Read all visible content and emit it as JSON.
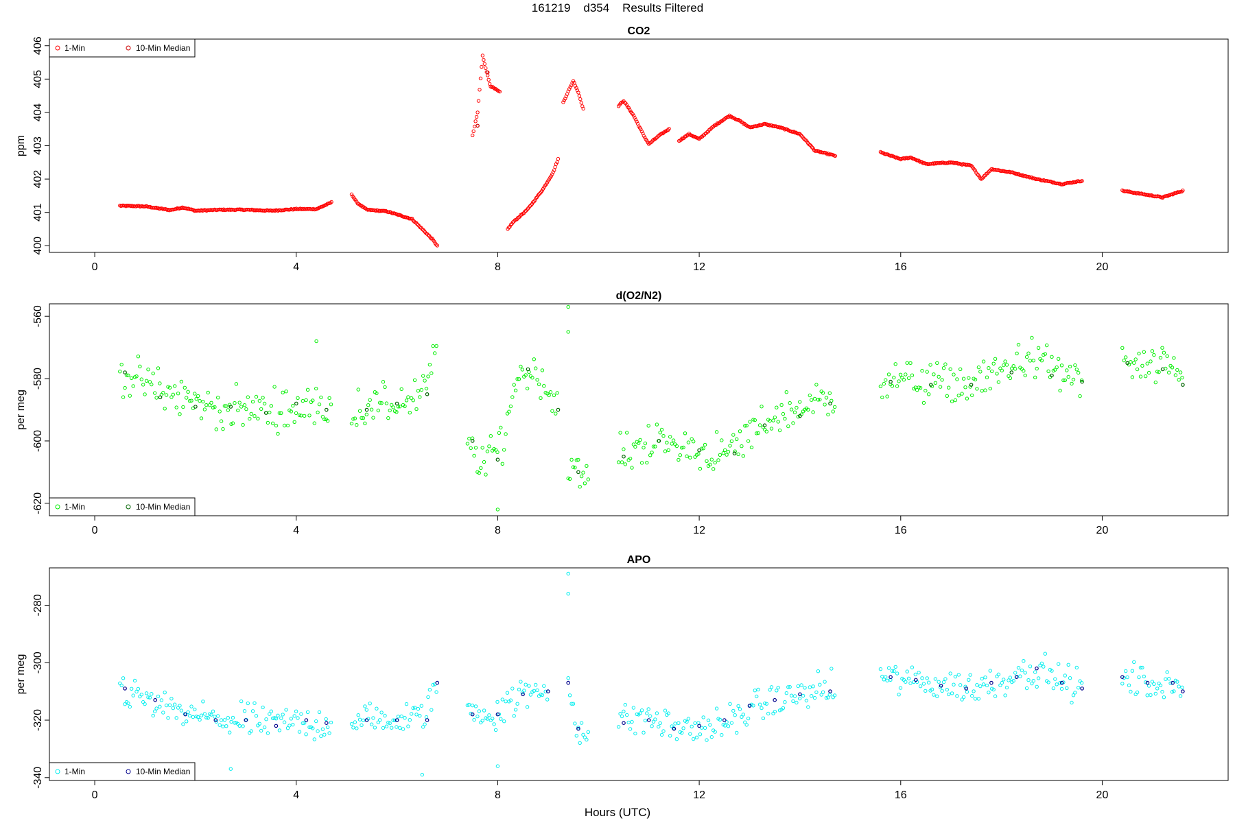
{
  "figure": {
    "title": "161219    d354    Results Filtered",
    "xlabel": "Hours (UTC)"
  },
  "chart_data": [
    {
      "type": "scatter",
      "title": "CO2",
      "ylabel": "ppm",
      "xlabel": "Hours (UTC)",
      "xlim": [
        -0.9,
        22.5
      ],
      "ylim": [
        399.8,
        406.2
      ],
      "xticks": [
        0,
        4,
        8,
        12,
        16,
        20
      ],
      "yticks": [
        400,
        401,
        402,
        403,
        404,
        405,
        406
      ],
      "legend": {
        "placement": "top-left",
        "entries": [
          "1-Min",
          "10-Min Median"
        ]
      },
      "colors": {
        "one_min": "#ff0000",
        "median": "#cc0000"
      },
      "grid": false,
      "series": [
        {
          "name": "1-Min",
          "x_step": 0.02,
          "segments": [
            {
              "x": [
                0.5,
                1.0,
                1.5,
                1.75,
                2.0,
                2.5,
                3.0,
                3.5,
                4.0,
                4.4,
                4.7
              ],
              "y": [
                401.2,
                401.18,
                401.07,
                401.15,
                401.05,
                401.08,
                401.08,
                401.05,
                401.1,
                401.1,
                401.3
              ]
            },
            {
              "x": [
                5.1,
                5.2,
                5.4,
                5.8,
                6.3,
                6.5,
                6.7,
                6.8
              ],
              "y": [
                401.55,
                401.3,
                401.08,
                401.03,
                400.8,
                400.5,
                400.2,
                400.0
              ]
            },
            {
              "x": [
                7.5,
                7.6,
                7.7,
                7.75,
                7.85,
                7.95,
                8.05
              ],
              "y": [
                403.3,
                404.0,
                405.7,
                405.4,
                404.8,
                404.7,
                404.6
              ]
            },
            {
              "x": [
                8.2,
                8.3,
                8.6,
                8.9,
                9.1,
                9.2
              ],
              "y": [
                400.5,
                400.7,
                401.1,
                401.7,
                402.2,
                402.6
              ]
            },
            {
              "x": [
                9.3,
                9.5,
                9.6,
                9.7
              ],
              "y": [
                404.3,
                404.95,
                404.6,
                404.1
              ]
            },
            {
              "x": [
                10.4,
                10.5,
                10.7,
                10.9,
                11.0,
                11.2,
                11.4
              ],
              "y": [
                404.2,
                404.35,
                403.9,
                403.3,
                403.05,
                403.3,
                403.5
              ]
            },
            {
              "x": [
                11.6,
                11.8,
                12.0,
                12.3,
                12.6,
                12.8,
                13.0,
                13.3,
                13.6,
                14.0,
                14.3,
                14.7
              ],
              "y": [
                403.15,
                403.35,
                403.2,
                403.6,
                403.9,
                403.75,
                403.55,
                403.65,
                403.55,
                403.35,
                402.85,
                402.7
              ]
            },
            {
              "x": [
                15.6,
                16.0,
                16.2,
                16.5,
                17.0,
                17.4,
                17.6,
                17.8,
                18.2,
                18.7,
                19.2,
                19.6
              ],
              "y": [
                402.8,
                402.6,
                402.65,
                402.45,
                402.5,
                402.4,
                402.0,
                402.3,
                402.2,
                402.0,
                401.85,
                401.95
              ]
            },
            {
              "x": [
                20.4,
                20.8,
                21.2,
                21.6
              ],
              "y": [
                401.65,
                401.55,
                401.45,
                401.65
              ]
            }
          ]
        },
        {
          "name": "10-Min Median",
          "x": [
            7.6,
            7.8
          ],
          "y": [
            403.6,
            405.2
          ]
        }
      ]
    },
    {
      "type": "scatter",
      "title": "d(O2/N2)",
      "ylabel": "per meg",
      "xlabel": "Hours (UTC)",
      "xlim": [
        -0.9,
        22.5
      ],
      "ylim": [
        -624,
        -556
      ],
      "xticks": [
        0,
        4,
        8,
        12,
        16,
        20
      ],
      "yticks": [
        -620,
        -600,
        -580,
        -560
      ],
      "legend": {
        "placement": "bottom-left",
        "entries": [
          "1-Min",
          "10-Min Median"
        ]
      },
      "colors": {
        "one_min": "#00ee00",
        "median": "#006400"
      },
      "grid": false,
      "series": [
        {
          "name": "1-Min",
          "x_step": 0.033,
          "noise": 5.5,
          "outliers": [
            [
              9.4,
              -557
            ],
            [
              9.4,
              -565
            ],
            [
              8.0,
              -622
            ],
            [
              4.4,
              -568
            ]
          ],
          "segments": [
            {
              "x": [
                0.5,
                1.5,
                2.5,
                3.5,
                4.7
              ],
              "y": [
                -578,
                -585,
                -590,
                -590,
                -589
              ]
            },
            {
              "x": [
                5.1,
                6.0,
                6.5,
                6.8
              ],
              "y": [
                -590,
                -588,
                -585,
                -572
              ]
            },
            {
              "x": [
                7.4,
                7.7,
                8.1,
                8.4,
                8.8,
                9.2
              ],
              "y": [
                -600,
                -608,
                -600,
                -578,
                -578,
                -590
              ]
            },
            {
              "x": [
                9.4,
                9.6,
                9.8
              ],
              "y": [
                -605,
                -612,
                -612
              ]
            },
            {
              "x": [
                10.4,
                11.0,
                12.0,
                12.5,
                12.7,
                13.5,
                14.7
              ],
              "y": [
                -605,
                -600,
                -603,
                -605,
                -602,
                -592,
                -586
              ]
            },
            {
              "x": [
                15.6,
                16.5,
                17.5,
                18.5,
                19.6
              ],
              "y": [
                -580,
                -581,
                -582,
                -573,
                -581
              ]
            },
            {
              "x": [
                20.4,
                21.0,
                21.6
              ],
              "y": [
                -575,
                -577,
                -578
              ]
            }
          ]
        },
        {
          "name": "10-Min Median",
          "x": [
            0.6,
            1.3,
            2.0,
            2.7,
            3.4,
            4.0,
            4.6,
            5.4,
            6.0,
            6.6,
            7.5,
            8.0,
            8.6,
            9.2,
            9.6,
            10.5,
            11.2,
            12.0,
            12.7,
            13.3,
            14.0,
            14.6,
            15.8,
            16.6,
            17.4,
            18.2,
            19.0,
            19.6,
            20.5,
            21.2,
            21.6
          ],
          "y": [
            -578,
            -586,
            -589,
            -589,
            -591,
            -588,
            -590,
            -590,
            -588,
            -585,
            -600,
            -606,
            -577,
            -590,
            -610,
            -605,
            -600,
            -603,
            -604,
            -595,
            -592,
            -588,
            -581,
            -582,
            -582,
            -578,
            -579,
            -581,
            -575,
            -577,
            -582
          ]
        }
      ]
    },
    {
      "type": "scatter",
      "title": "APO",
      "ylabel": "per meg",
      "xlabel": "Hours (UTC)",
      "xlim": [
        -0.9,
        22.5
      ],
      "ylim": [
        -341,
        -267
      ],
      "xticks": [
        0,
        4,
        8,
        12,
        16,
        20
      ],
      "yticks": [
        -340,
        -320,
        -300,
        -280
      ],
      "legend": {
        "placement": "bottom-left",
        "entries": [
          "1-Min",
          "10-Min Median"
        ]
      },
      "colors": {
        "one_min": "#00eeee",
        "median": "#00008b"
      },
      "grid": false,
      "series": [
        {
          "name": "1-Min",
          "x_step": 0.033,
          "noise": 5.0,
          "outliers": [
            [
              9.4,
              -269
            ],
            [
              9.4,
              -276
            ],
            [
              8.0,
              -336
            ],
            [
              6.5,
              -339
            ],
            [
              2.7,
              -337
            ]
          ],
          "segments": [
            {
              "x": [
                0.5,
                1.5,
                2.5,
                3.5,
                4.7
              ],
              "y": [
                -309,
                -317,
                -320,
                -321,
                -321
              ]
            },
            {
              "x": [
                5.1,
                6.0,
                6.5,
                6.8
              ],
              "y": [
                -320,
                -320,
                -319,
                -307
              ]
            },
            {
              "x": [
                7.4,
                7.9,
                8.4,
                9.0
              ],
              "y": [
                -317,
                -318,
                -312,
                -309
              ]
            },
            {
              "x": [
                9.4,
                9.6,
                9.8
              ],
              "y": [
                -307,
                -323,
                -325
              ]
            },
            {
              "x": [
                10.4,
                11.0,
                11.5,
                12.5,
                13.0,
                14.0,
                14.7
              ],
              "y": [
                -320,
                -319,
                -323,
                -322,
                -316,
                -311,
                -309
              ]
            },
            {
              "x": [
                15.6,
                16.5,
                17.5,
                18.6,
                19.6
              ],
              "y": [
                -305,
                -307,
                -309,
                -302,
                -309
              ]
            },
            {
              "x": [
                20.4,
                21.0,
                21.6
              ],
              "y": [
                -306,
                -307,
                -310
              ]
            }
          ]
        },
        {
          "name": "10-Min Median",
          "x": [
            0.6,
            1.2,
            1.8,
            2.4,
            3.0,
            3.6,
            4.2,
            4.6,
            5.4,
            6.0,
            6.6,
            6.8,
            7.5,
            8.0,
            8.5,
            9.0,
            9.4,
            9.6,
            10.5,
            11.0,
            11.5,
            12.0,
            12.5,
            13.0,
            13.5,
            14.0,
            14.6,
            15.8,
            16.3,
            16.8,
            17.3,
            17.8,
            18.3,
            18.7,
            19.2,
            19.6,
            20.4,
            20.9,
            21.4,
            21.6
          ],
          "y": [
            -309,
            -313,
            -318,
            -320,
            -320,
            -322,
            -320,
            -321,
            -320,
            -320,
            -320,
            -307,
            -318,
            -318,
            -311,
            -310,
            -307,
            -323,
            -321,
            -320,
            -323,
            -322,
            -320,
            -315,
            -313,
            -311,
            -310,
            -305,
            -306,
            -308,
            -309,
            -307,
            -305,
            -302,
            -307,
            -309,
            -305,
            -307,
            -307,
            -310
          ]
        }
      ]
    }
  ]
}
